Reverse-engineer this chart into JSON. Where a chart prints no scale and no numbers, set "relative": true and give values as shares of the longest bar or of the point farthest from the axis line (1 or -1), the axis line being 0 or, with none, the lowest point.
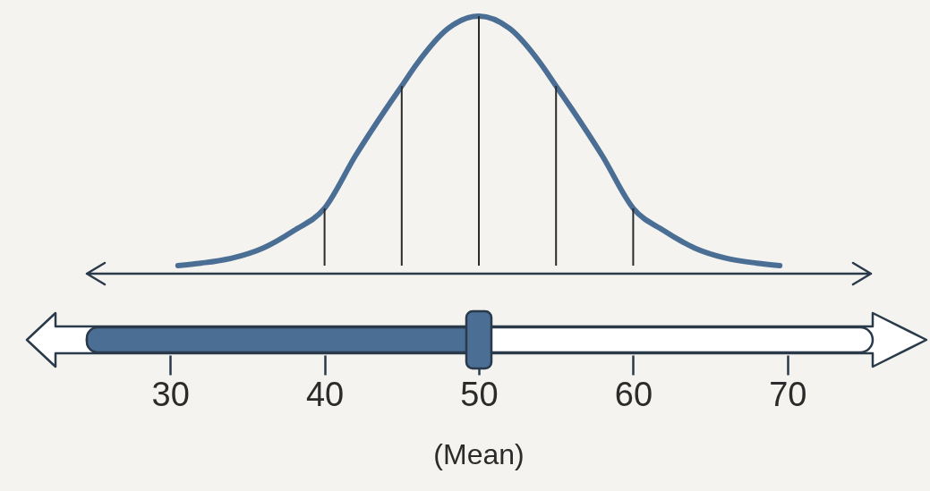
{
  "chart_data": {
    "type": "line",
    "relative": true,
    "color": "#4a6e94",
    "x": [
      30.5,
      32,
      34,
      36,
      38,
      40,
      42,
      44,
      45,
      46,
      48,
      50,
      52,
      54,
      55,
      56,
      58,
      60,
      62,
      64,
      66,
      68,
      69.5
    ],
    "values": [
      0,
      0.01,
      0.03,
      0.07,
      0.14,
      0.23,
      0.44,
      0.63,
      0.72,
      0.81,
      0.95,
      1,
      0.95,
      0.81,
      0.72,
      0.63,
      0.44,
      0.23,
      0.14,
      0.07,
      0.03,
      0.01,
      0
    ],
    "xlim": [
      25,
      75
    ],
    "xticks": [
      30,
      40,
      50,
      60,
      70
    ],
    "ref_lines": [
      {
        "axis": "x",
        "value": 40,
        "color": "#2b2b2b"
      },
      {
        "axis": "x",
        "value": 45,
        "color": "#2b2b2b"
      },
      {
        "axis": "x",
        "value": 50,
        "color": "#2b2b2b"
      },
      {
        "axis": "x",
        "value": 55,
        "color": "#2b2b2b"
      },
      {
        "axis": "x",
        "value": 60,
        "color": "#2b2b2b"
      }
    ],
    "annotations": [
      "(Mean)"
    ]
  }
}
